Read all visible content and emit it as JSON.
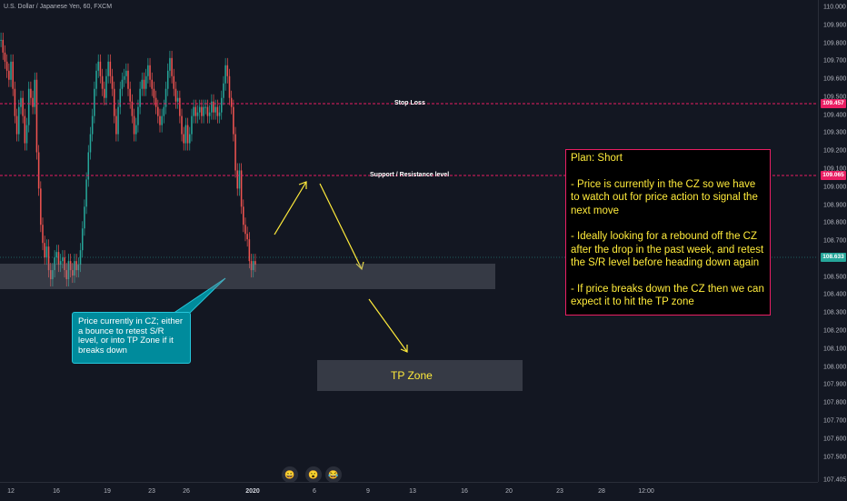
{
  "symbol": "U.S. Dollar / Japanese Yen, 60, FXCM",
  "y_axis": {
    "ticks": [
      "110.000",
      "109.900",
      "109.800",
      "109.700",
      "109.600",
      "109.500",
      "109.400",
      "109.300",
      "109.200",
      "109.100",
      "109.000",
      "108.900",
      "108.800",
      "108.700",
      "108.600",
      "108.500",
      "108.400",
      "108.300",
      "108.200",
      "108.100",
      "108.000",
      "107.900",
      "107.800",
      "107.700",
      "107.600",
      "107.500",
      "107.405"
    ],
    "tags": {
      "stop_loss": "109.457",
      "support": "109.065",
      "current": "108.633"
    }
  },
  "x_axis": {
    "ticks": [
      {
        "label": "12",
        "bold": false
      },
      {
        "label": "16",
        "bold": false
      },
      {
        "label": "19",
        "bold": false
      },
      {
        "label": "23",
        "bold": false
      },
      {
        "label": "26",
        "bold": false
      },
      {
        "label": "2020",
        "bold": true
      },
      {
        "label": "6",
        "bold": false
      },
      {
        "label": "9",
        "bold": false
      },
      {
        "label": "13",
        "bold": false
      },
      {
        "label": "16",
        "bold": false
      },
      {
        "label": "20",
        "bold": false
      },
      {
        "label": "23",
        "bold": false
      },
      {
        "label": "28",
        "bold": false
      },
      {
        "label": "12:00",
        "bold": false
      }
    ]
  },
  "lines": {
    "stop_loss_label": "Stop Loss",
    "support_label": "Support / Resistance level"
  },
  "plan": {
    "title": "Plan: Short",
    "p1": "- Price is currently in the CZ so we have to watch out for price action to signal the next move",
    "p2": "- Ideally looking for a rebound off the CZ after the drop in the past week, and retest the S/R level before heading down again",
    "p3": "- If price breaks down the CZ then we can expect it to  hit the TP zone"
  },
  "callout": "Price currently in CZ; either a bounce to retest S/R level, or into TP Zone if it breaks down",
  "tp_zone_label": "TP Zone",
  "colors": {
    "background": "#131722",
    "up": "#26a69a",
    "down": "#ef5350",
    "stop_line": "#e91e63",
    "plan_text": "#ffeb3b",
    "callout_bg": "#008b9c"
  },
  "chart_data": {
    "type": "candlestick",
    "series_shape": [
      109.82,
      109.75,
      109.7,
      109.65,
      109.6,
      109.7,
      109.55,
      109.4,
      109.3,
      109.45,
      109.5,
      109.4,
      109.25,
      109.35,
      109.55,
      109.5,
      109.45,
      109.6,
      109.2,
      109.0,
      108.8,
      108.7,
      108.62,
      108.68,
      108.55,
      108.5,
      108.55,
      108.62,
      108.65,
      108.58,
      108.6,
      108.62,
      108.55,
      108.5,
      108.6,
      108.55,
      108.52,
      108.6,
      108.55,
      108.58,
      108.66,
      108.78,
      108.9,
      109.05,
      109.2,
      109.3,
      109.4,
      109.55,
      109.65,
      109.7,
      109.62,
      109.55,
      109.5,
      109.62,
      109.7,
      109.62,
      109.55,
      109.4,
      109.3,
      109.45,
      109.55,
      109.6,
      109.62,
      109.65,
      109.55,
      109.48,
      109.4,
      109.3,
      109.35,
      109.45,
      109.55,
      109.6,
      109.55,
      109.62,
      109.68,
      109.6,
      109.55,
      109.5,
      109.45,
      109.4,
      109.35,
      109.4,
      109.45,
      109.55,
      109.65,
      109.72,
      109.62,
      109.55,
      109.48,
      109.5,
      109.4,
      109.3,
      109.25,
      109.35,
      109.25,
      109.3,
      109.4,
      109.45,
      109.4,
      109.42,
      109.45,
      109.4,
      109.45,
      109.45,
      109.4,
      109.42,
      109.48,
      109.42,
      109.45,
      109.4,
      109.42,
      109.5,
      109.58,
      109.68,
      109.62,
      109.5,
      109.45,
      109.3,
      109.1,
      109.0,
      109.1,
      108.9,
      108.8,
      108.75,
      108.72,
      108.6,
      108.55,
      108.6,
      108.58
    ],
    "y_range": [
      107.405,
      110.0
    ]
  }
}
